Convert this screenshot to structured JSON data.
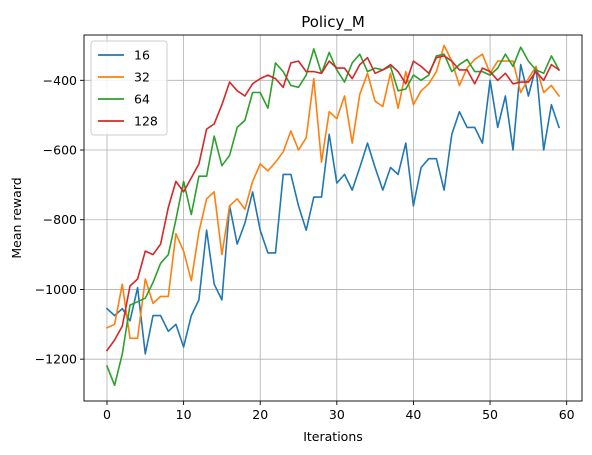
{
  "chart_data": {
    "type": "line",
    "title": "Policy_M",
    "xlabel": "Iterations",
    "ylabel": "Mean reward",
    "xlim": [
      -3,
      62
    ],
    "ylim": [
      -1320,
      -270
    ],
    "x_ticks": [
      0,
      10,
      20,
      30,
      40,
      50,
      60
    ],
    "x_tick_labels": [
      "0",
      "10",
      "20",
      "30",
      "40",
      "50",
      "60"
    ],
    "y_ticks": [
      -1200,
      -1000,
      -800,
      -600,
      -400
    ],
    "y_tick_labels": [
      "−1200",
      "−1000",
      "−800",
      "−600",
      "−400"
    ],
    "grid": true,
    "legend_position": "upper-left",
    "x": [
      0,
      1,
      2,
      3,
      4,
      5,
      6,
      7,
      8,
      9,
      10,
      11,
      12,
      13,
      14,
      15,
      16,
      17,
      18,
      19,
      20,
      21,
      22,
      23,
      24,
      25,
      26,
      27,
      28,
      29,
      30,
      31,
      32,
      33,
      34,
      35,
      36,
      37,
      38,
      39,
      40,
      41,
      42,
      43,
      44,
      45,
      46,
      47,
      48,
      49,
      50,
      51,
      52,
      53,
      54,
      55,
      56,
      57,
      58,
      59
    ],
    "series": [
      {
        "name": "16",
        "color": "#1f77b4",
        "values": [
          -1055,
          -1075,
          -1055,
          -1090,
          -995,
          -1185,
          -1075,
          -1075,
          -1120,
          -1100,
          -1165,
          -1075,
          -1030,
          -830,
          -985,
          -1030,
          -760,
          -870,
          -810,
          -720,
          -830,
          -895,
          -895,
          -670,
          -670,
          -760,
          -830,
          -735,
          -735,
          -555,
          -695,
          -670,
          -715,
          -650,
          -580,
          -650,
          -715,
          -650,
          -670,
          -580,
          -760,
          -650,
          -625,
          -625,
          -715,
          -555,
          -490,
          -535,
          -535,
          -580,
          -400,
          -535,
          -445,
          -600,
          -355,
          -445,
          -360,
          -600,
          -470,
          -535
        ]
      },
      {
        "name": "32",
        "color": "#ff7f0e",
        "values": [
          -1110,
          -1100,
          -985,
          -1140,
          -1140,
          -970,
          -1040,
          -1020,
          -1020,
          -840,
          -890,
          -975,
          -835,
          -740,
          -720,
          -900,
          -760,
          -740,
          -770,
          -690,
          -640,
          -660,
          -635,
          -605,
          -545,
          -600,
          -565,
          -395,
          -635,
          -490,
          -510,
          -445,
          -580,
          -440,
          -380,
          -460,
          -475,
          -380,
          -480,
          -375,
          -470,
          -430,
          -410,
          -375,
          -300,
          -345,
          -415,
          -365,
          -340,
          -325,
          -380,
          -345,
          -345,
          -345,
          -435,
          -395,
          -360,
          -435,
          -415,
          -445
        ]
      },
      {
        "name": "64",
        "color": "#2ca02c",
        "values": [
          -1220,
          -1275,
          -1185,
          -1045,
          -1035,
          -1025,
          -980,
          -925,
          -900,
          -800,
          -690,
          -785,
          -675,
          -675,
          -560,
          -645,
          -615,
          -535,
          -515,
          -435,
          -435,
          -480,
          -350,
          -375,
          -415,
          -420,
          -385,
          -310,
          -380,
          -320,
          -370,
          -405,
          -350,
          -325,
          -375,
          -365,
          -370,
          -360,
          -430,
          -425,
          -385,
          -400,
          -385,
          -330,
          -325,
          -375,
          -355,
          -340,
          -375,
          -375,
          -385,
          -365,
          -325,
          -360,
          -305,
          -345,
          -370,
          -380,
          -330,
          -370
        ]
      },
      {
        "name": "128",
        "color": "#d62728",
        "values": [
          -1175,
          -1145,
          -1105,
          -990,
          -970,
          -890,
          -900,
          -870,
          -765,
          -690,
          -720,
          -680,
          -640,
          -540,
          -525,
          -470,
          -405,
          -430,
          -445,
          -410,
          -395,
          -385,
          -395,
          -420,
          -350,
          -345,
          -375,
          -375,
          -380,
          -345,
          -365,
          -365,
          -395,
          -355,
          -335,
          -380,
          -370,
          -355,
          -375,
          -410,
          -345,
          -360,
          -380,
          -335,
          -330,
          -345,
          -370,
          -370,
          -410,
          -365,
          -375,
          -400,
          -380,
          -410,
          -405,
          -405,
          -375,
          -400,
          -355,
          -370
        ]
      }
    ]
  }
}
